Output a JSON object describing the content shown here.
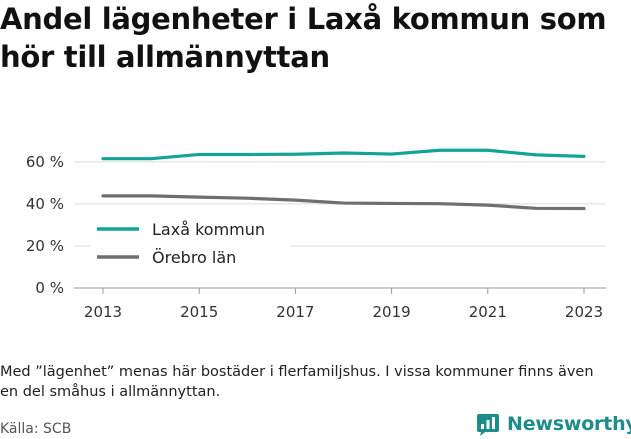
{
  "title": "Andel lägenheter i Laxå kommun som hör till allmännyttan",
  "note": "Med ”lägenhet” menas här bostäder i flerfamiljshus. I vissa kommuner finns även en del småhus i allmännyttan.",
  "source": "Källa: SCB",
  "brand": {
    "name": "Newsworthy",
    "icon": "bar-chart-logo-icon",
    "color": "#1e8c8a"
  },
  "chart_data": {
    "type": "line",
    "title": "Andel lägenheter i Laxå kommun som hör till allmännyttan",
    "xlabel": "",
    "ylabel": "",
    "x": [
      2013,
      2014,
      2015,
      2016,
      2017,
      2018,
      2019,
      2020,
      2021,
      2022,
      2023
    ],
    "xticks": [
      "2013",
      "2015",
      "2017",
      "2019",
      "2021",
      "2023"
    ],
    "yticks": [
      "0 %",
      "20 %",
      "40 %",
      "60 %"
    ],
    "ylim": [
      0,
      68
    ],
    "grid": "horizontal",
    "legend": "center-left",
    "series": [
      {
        "name": "Laxå kommun",
        "color": "#13a39a",
        "values": [
          61.5,
          61.5,
          63.5,
          63.5,
          63.6,
          64.2,
          63.7,
          65.5,
          65.5,
          63.3,
          62.6
        ]
      },
      {
        "name": "Örebro län",
        "color": "#6e6e73",
        "values": [
          43.8,
          43.8,
          43.2,
          42.7,
          41.8,
          40.4,
          40.2,
          40.1,
          39.4,
          37.9,
          37.8
        ]
      }
    ]
  }
}
